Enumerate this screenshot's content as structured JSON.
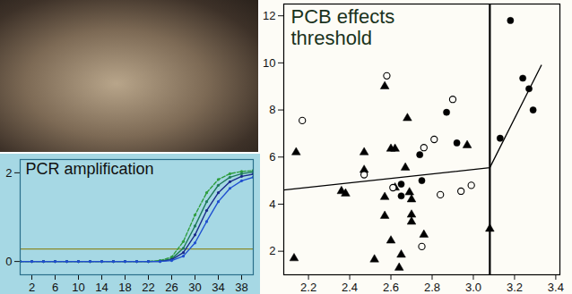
{
  "chart_data": [
    {
      "type": "line",
      "title": "PCR amplification",
      "x": [
        0,
        2,
        4,
        6,
        8,
        10,
        12,
        14,
        16,
        18,
        20,
        22,
        24,
        26,
        28,
        30,
        32,
        34,
        36,
        38,
        40
      ],
      "series": [
        {
          "color": "#2e9e3e",
          "line_style": "dashed",
          "marker": "circle",
          "values": [
            0,
            0,
            0,
            0,
            0,
            0,
            0,
            0,
            0,
            0,
            0,
            0,
            0.02,
            0.1,
            0.45,
            1.05,
            1.55,
            1.85,
            1.98,
            2.03,
            2.05
          ]
        },
        {
          "color": "#1f7a5a",
          "line_style": "solid",
          "marker": "circle",
          "values": [
            0,
            0,
            0,
            0,
            0,
            0,
            0,
            0,
            0,
            0,
            0,
            0,
            0.01,
            0.06,
            0.3,
            0.8,
            1.35,
            1.72,
            1.9,
            1.98,
            2.02
          ]
        },
        {
          "color": "#1a2a8a",
          "line_style": "solid",
          "marker": "circle",
          "values": [
            0,
            0,
            0,
            0,
            0,
            0,
            0,
            0,
            0,
            0,
            0,
            0,
            0,
            0.04,
            0.2,
            0.6,
            1.15,
            1.55,
            1.8,
            1.92,
            1.97
          ]
        },
        {
          "color": "#2050d0",
          "line_style": "solid",
          "marker": "circle",
          "values": [
            0,
            0,
            0,
            0,
            0,
            0,
            0,
            0,
            0,
            0,
            0,
            0,
            0,
            0.02,
            0.12,
            0.42,
            0.9,
            1.35,
            1.65,
            1.82,
            1.9
          ]
        }
      ],
      "threshold_line": {
        "value": 0.28,
        "color": "#8a8a2a"
      },
      "xlim": [
        0,
        40
      ],
      "xticks": [
        2,
        6,
        10,
        14,
        18,
        22,
        26,
        30,
        34,
        38
      ],
      "ylim": [
        -0.3,
        2.3
      ],
      "yticks": [
        0,
        2
      ],
      "color": "#a6d8e4",
      "grid": false
    },
    {
      "type": "scatter",
      "title": "PCB effects threshold",
      "series": [
        {
          "color": "#000000",
          "marker": "triangle",
          "x": [
            2.14,
            2.13,
            2.36,
            2.38,
            2.47,
            2.47,
            2.52,
            2.57,
            2.57,
            2.6,
            2.62,
            2.62,
            2.6,
            2.57,
            2.65,
            2.67,
            2.7,
            2.7,
            2.7,
            2.68,
            2.69,
            2.76,
            2.64,
            2.97,
            3.08
          ],
          "values": [
            6.2,
            1.7,
            4.55,
            4.45,
            6.2,
            5.45,
            1.65,
            4.3,
            9.0,
            6.35,
            6.35,
            4.7,
            2.45,
            3.5,
            1.85,
            5.55,
            4.2,
            3.55,
            3.25,
            7.65,
            4.5,
            2.7,
            1.3,
            6.5,
            2.95
          ]
        },
        {
          "color": "#000000",
          "marker": "circle",
          "x": [
            2.74,
            2.75,
            2.65,
            2.65,
            2.87,
            2.92,
            3.18,
            3.13,
            3.24,
            3.27,
            3.29
          ],
          "values": [
            6.1,
            5.0,
            4.35,
            4.85,
            7.9,
            6.6,
            11.8,
            6.8,
            9.35,
            8.9,
            8.0
          ]
        },
        {
          "color": "#000000",
          "marker": "open circle",
          "x": [
            2.17,
            2.58,
            2.47,
            2.61,
            2.76,
            2.81,
            2.9,
            2.84,
            2.94,
            2.99,
            2.75
          ],
          "values": [
            7.55,
            9.45,
            5.25,
            4.7,
            6.4,
            6.75,
            8.45,
            4.4,
            4.55,
            4.8,
            2.2
          ]
        }
      ],
      "fit_line": {
        "x": [
          2.08,
          3.08,
          3.33
        ],
        "values": [
          4.6,
          5.55,
          9.9
        ],
        "color": "#000000"
      },
      "threshold_line": {
        "value": 3.08,
        "color": "#000000"
      },
      "xlim": [
        2.08,
        3.42
      ],
      "xticks": [
        2.2,
        2.4,
        2.6,
        2.8,
        {
          "value": 3,
          "label": "3.0"
        },
        3.2,
        3.4
      ],
      "ylim": [
        1,
        12.5
      ],
      "yticks": [
        2,
        4,
        6,
        8,
        10,
        12
      ],
      "color": "#fdfcf6",
      "grid": false
    }
  ]
}
